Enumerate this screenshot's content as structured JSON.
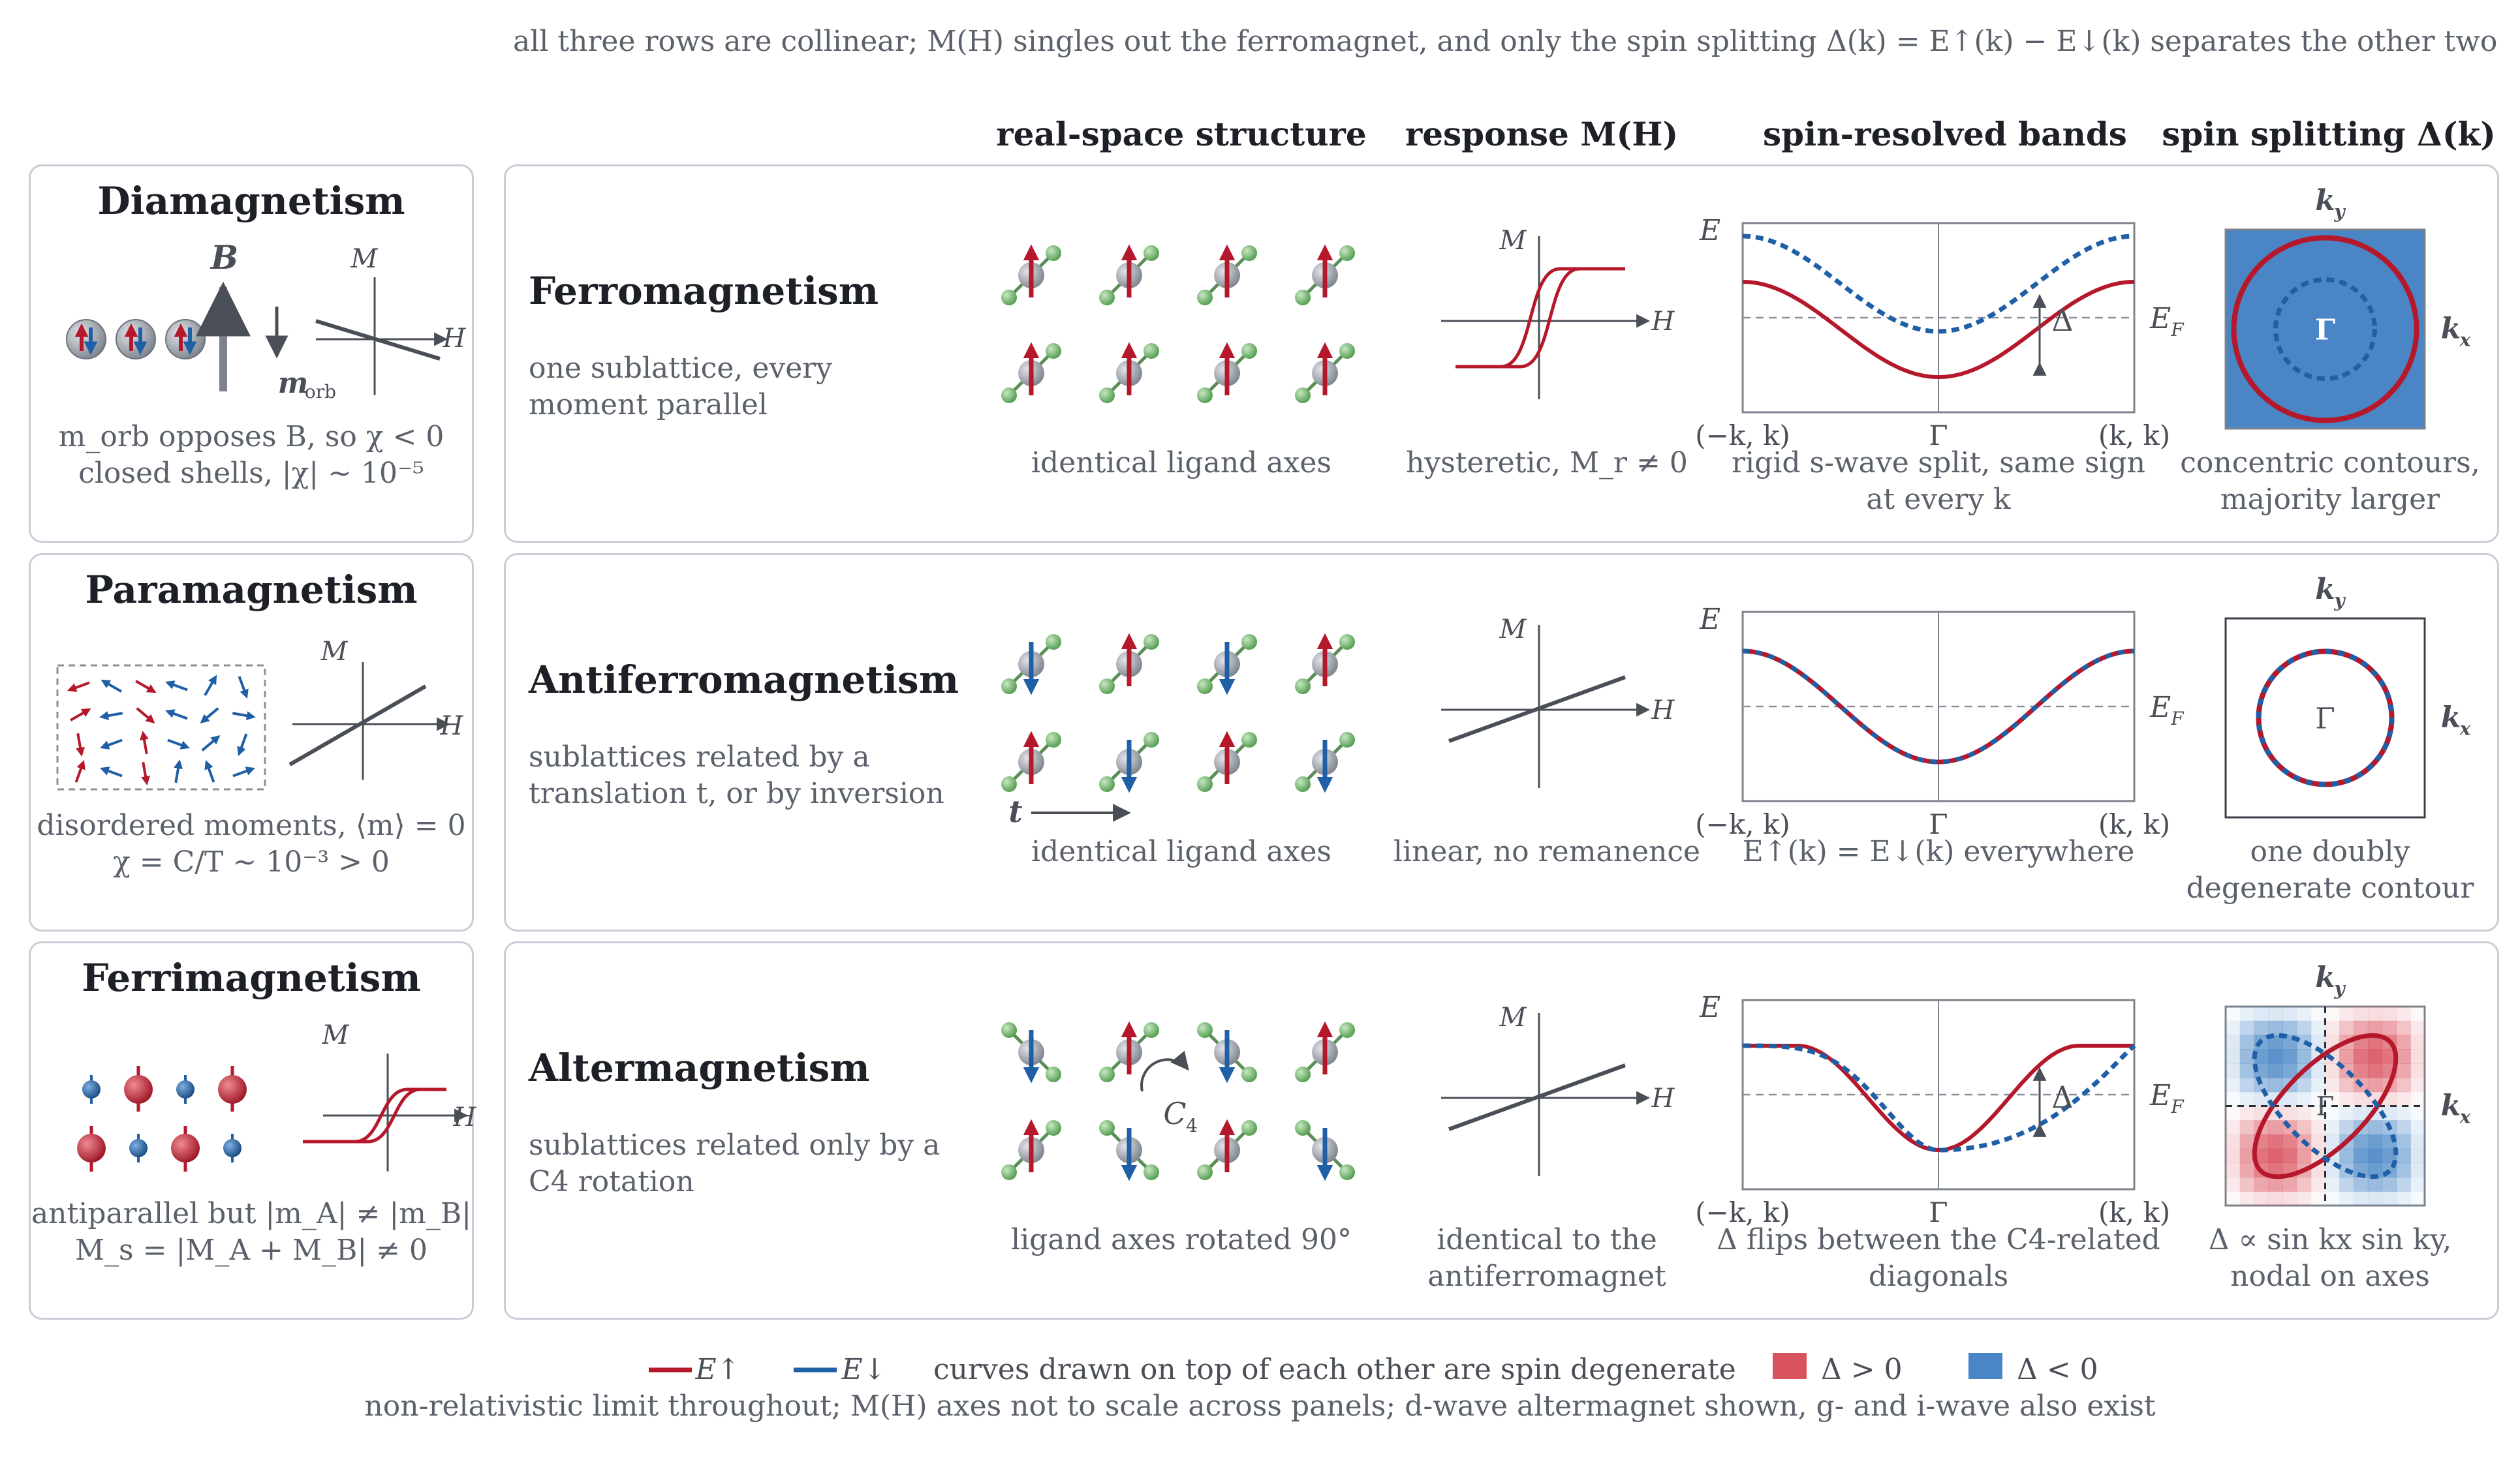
{
  "top_note": "all three rows are collinear; M(H) singles out the ferromagnet, and only the spin splitting Δ(k) = E↑(k) − E↓(k) separates the other two",
  "column_headers": [
    "real-space structure",
    "response M(H)",
    "spin-resolved bands",
    "spin splitting Δ(k)"
  ],
  "left_panels": [
    {
      "title": "Diamagnetism",
      "field_label": "B",
      "orb_label": "m_orb",
      "axis_m": "M",
      "axis_h": "H",
      "caption": [
        "m_orb opposes B, so χ < 0",
        "closed shells, |χ| ~ 10⁻⁵"
      ]
    },
    {
      "title": "Paramagnetism",
      "axis_m": "M",
      "axis_h": "H",
      "caption": [
        "disordered moments, ⟨m⟩ = 0",
        "χ = C/T ~ 10⁻³ > 0"
      ]
    },
    {
      "title": "Ferrimagnetism",
      "axis_m": "M",
      "axis_h": "H",
      "caption": [
        "antiparallel but |m_A| ≠ |m_B|",
        "M_s = |M_A + M_B| ≠ 0"
      ]
    }
  ],
  "rows": [
    {
      "title": "Ferromagnetism",
      "desc": "one sublattice, every moment parallel",
      "structure_caption": "identical ligand axes",
      "response_caption": "hysteretic, M_r ≠ 0",
      "bands_caption": "rigid s-wave split, same sign at every k",
      "splitting_caption": "concentric contours, majority larger",
      "arrangement": "ferro"
    },
    {
      "title": "Antiferromagnetism",
      "desc": "sublattices related by a translation t, or by inversion",
      "structure_caption": "identical ligand axes",
      "response_caption": "linear, no remanence",
      "bands_caption": "E↑(k) = E↓(k) everywhere",
      "splitting_caption": "one doubly degenerate contour",
      "translation_label": "t",
      "arrangement": "antiferro"
    },
    {
      "title": "Altermagnetism",
      "desc": "sublattices related only by a C4 rotation",
      "structure_caption": "ligand axes rotated 90°",
      "response_caption": "identical to the antiferromagnet",
      "bands_caption": "Δ flips between the C4-related diagonals",
      "splitting_caption": "Δ ∝ sin kx sin ky, nodal on axes",
      "rotation_label": "C4",
      "arrangement": "alter"
    }
  ],
  "axis_labels": {
    "M": "M",
    "H": "H",
    "E": "E",
    "EF": "E_F",
    "k_left": "(−k, k)",
    "k_mid": "Γ",
    "k_right": "(k, k)",
    "kx": "k_x",
    "ky": "k_y",
    "gamma": "Γ",
    "delta": "Δ"
  },
  "legend": {
    "up": "E↑",
    "down": "E↓",
    "degenerate": "curves drawn on top of each other are spin degenerate",
    "pos": "Δ > 0",
    "neg": "Δ < 0"
  },
  "bottom_note": "non-relativistic limit throughout; M(H) axes not to scale across panels; d-wave altermagnet shown, g- and i-wave also exist",
  "colors": {
    "up": "#b5182b",
    "down": "#1f5fa6",
    "axis": "#4a4f57",
    "ligand": "#6fb06a",
    "atom": "#9aa0a8",
    "pos": "#d9535f",
    "neg": "#4a86c5",
    "panel_border": "#c9ced6"
  }
}
